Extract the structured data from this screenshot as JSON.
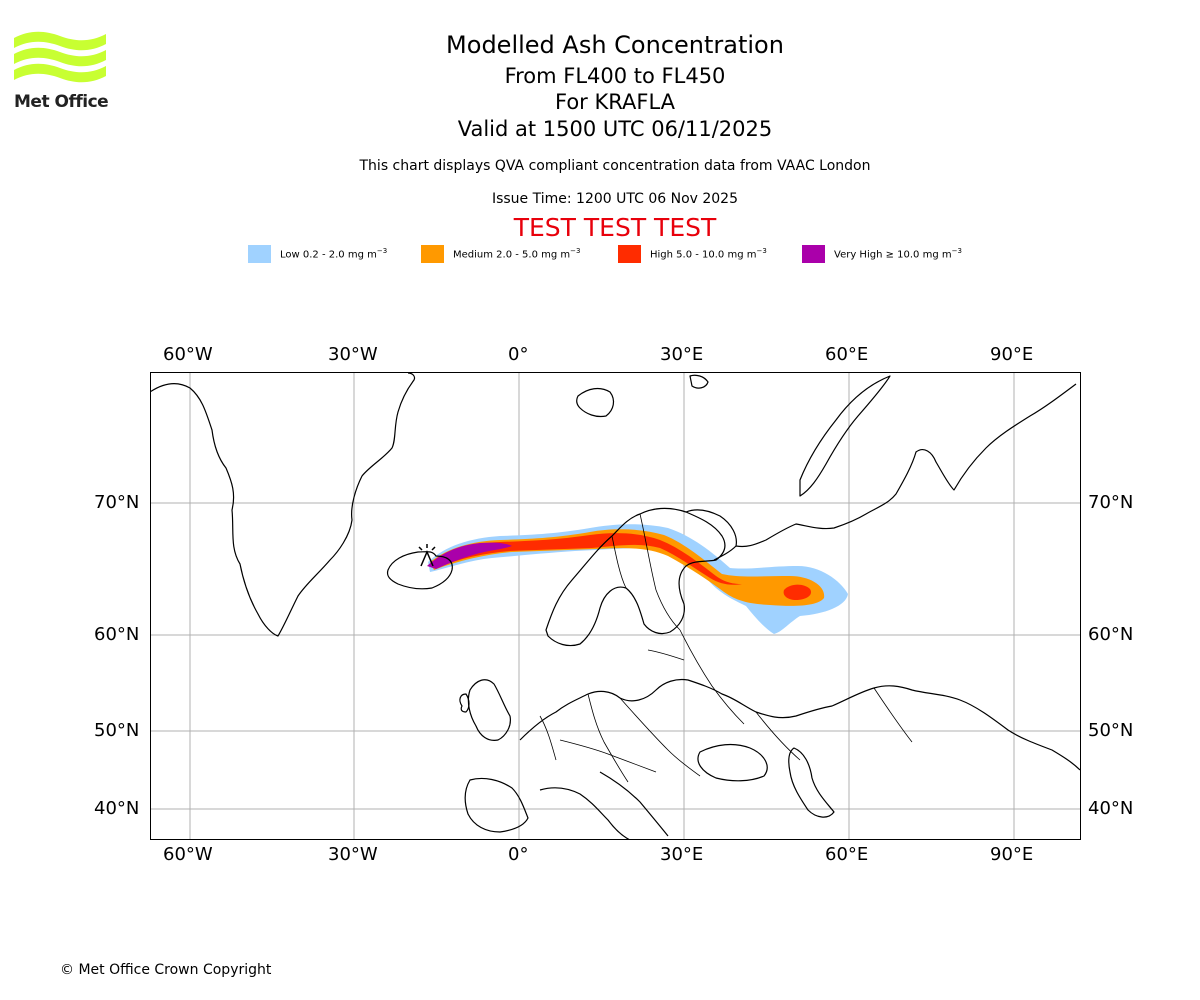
{
  "logo": {
    "text": "Met Office",
    "color": "#c8ff32"
  },
  "title": {
    "line1": "Modelled Ash Concentration",
    "line2": "From FL400 to FL450",
    "line3": "For KRAFLA",
    "line4": "Valid at 1500 UTC 06/11/2025"
  },
  "subtitle": "This chart displays QVA compliant concentration data from VAAC London",
  "issue_time": "Issue Time: 1200 UTC 06 Nov 2025",
  "test_banner": "TEST TEST TEST",
  "legend": [
    {
      "label": "Low 0.2 - 2.0 mg m",
      "exp": "−3",
      "color": "#a0d2ff"
    },
    {
      "label": "Medium 2.0 - 5.0 mg m",
      "exp": "−3",
      "color": "#ff9900"
    },
    {
      "label": "High 5.0 - 10.0 mg m",
      "exp": "−3",
      "color": "#ff2c00"
    },
    {
      "label": "Very High ≥ 10.0 mg m",
      "exp": "−3",
      "color": "#aa00aa"
    }
  ],
  "map": {
    "lon_labels": [
      "60°W",
      "30°W",
      "0°",
      "30°E",
      "60°E",
      "90°E"
    ],
    "lat_labels": [
      "70°N",
      "60°N",
      "50°N",
      "40°N"
    ],
    "volcano": "KRAFLA"
  },
  "copyright": "© Met Office Crown Copyright"
}
